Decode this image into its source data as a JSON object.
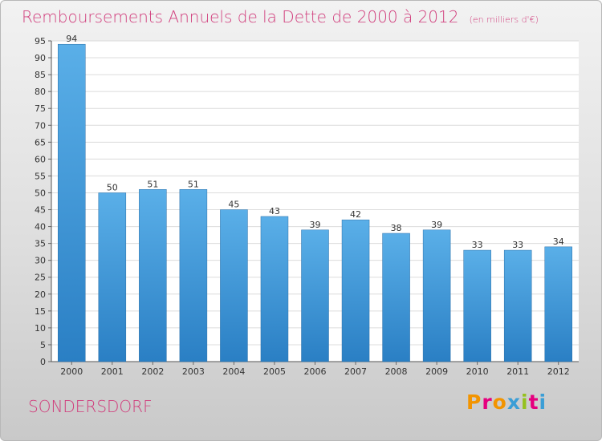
{
  "header": {
    "title": "Remboursements Annuels de la Dette de 2000 à 2012",
    "unit": "(en milliers d'€)"
  },
  "footer": {
    "commune": "SONDERSDORF",
    "brand": "Proxiti"
  },
  "colors": {
    "title": "#d13d7c",
    "bar_top": "#5aafe8",
    "bar_bottom": "#2a7fc4",
    "brand_letters": [
      "#f29400",
      "#e5007e",
      "#f29400",
      "#3b9ed6",
      "#95c11f",
      "#e5007e",
      "#3b9ed6"
    ]
  },
  "chart_data": {
    "type": "bar",
    "categories": [
      "2000",
      "2001",
      "2002",
      "2003",
      "2004",
      "2005",
      "2006",
      "2007",
      "2008",
      "2009",
      "2010",
      "2011",
      "2012"
    ],
    "values": [
      94,
      50,
      51,
      51,
      45,
      43,
      39,
      42,
      38,
      39,
      33,
      33,
      34
    ],
    "ylim": [
      0,
      95
    ],
    "ytick_step": 5,
    "grid": "horizontal",
    "legend": "none"
  }
}
